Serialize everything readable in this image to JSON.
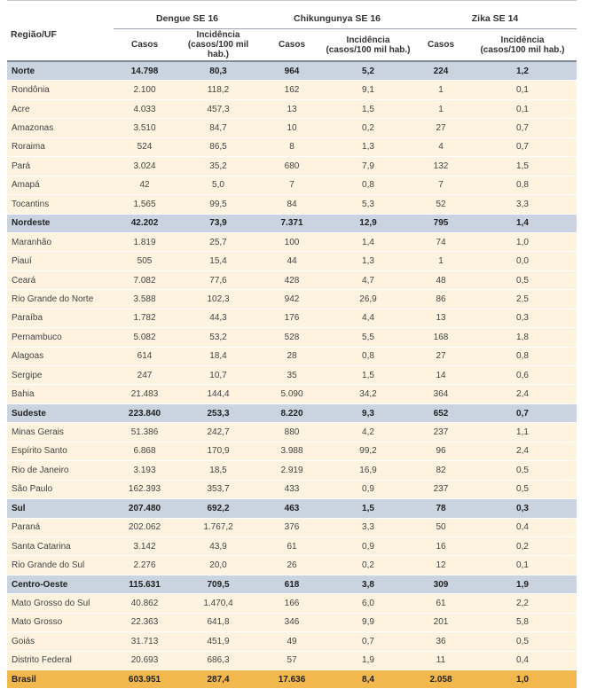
{
  "header": {
    "region_label": "Região/UF",
    "groups": [
      "Dengue SE 16",
      "Chikungunya SE 16",
      "Zika SE 14"
    ],
    "casos_label": "Casos",
    "incidencia_line1": "Incidência",
    "incidencia_line2": "(casos/100 mil hab.)"
  },
  "rows": [
    {
      "type": "region",
      "name": "Norte",
      "cells": [
        "14.798",
        "80,3",
        "964",
        "5,2",
        "224",
        "1,2"
      ]
    },
    {
      "type": "state",
      "name": "Rondônia",
      "cells": [
        "2.100",
        "118,2",
        "162",
        "9,1",
        "1",
        "0,1"
      ]
    },
    {
      "type": "state",
      "name": "Acre",
      "cells": [
        "4.033",
        "457,3",
        "13",
        "1,5",
        "1",
        "0,1"
      ]
    },
    {
      "type": "state",
      "name": "Amazonas",
      "cells": [
        "3.510",
        "84,7",
        "10",
        "0,2",
        "27",
        "0,7"
      ]
    },
    {
      "type": "state",
      "name": "Roraima",
      "cells": [
        "524",
        "86,5",
        "8",
        "1,3",
        "4",
        "0,7"
      ]
    },
    {
      "type": "state",
      "name": "Pará",
      "cells": [
        "3.024",
        "35,2",
        "680",
        "7,9",
        "132",
        "1,5"
      ]
    },
    {
      "type": "state",
      "name": "Amapá",
      "cells": [
        "42",
        "5,0",
        "7",
        "0,8",
        "7",
        "0,8"
      ]
    },
    {
      "type": "state",
      "name": "Tocantins",
      "cells": [
        "1.565",
        "99,5",
        "84",
        "5,3",
        "52",
        "3,3"
      ]
    },
    {
      "type": "region",
      "name": "Nordeste",
      "cells": [
        "42.202",
        "73,9",
        "7.371",
        "12,9",
        "795",
        "1,4"
      ]
    },
    {
      "type": "state",
      "name": "Maranhão",
      "cells": [
        "1.819",
        "25,7",
        "100",
        "1,4",
        "74",
        "1,0"
      ]
    },
    {
      "type": "state",
      "name": "Piauí",
      "cells": [
        "505",
        "15,4",
        "44",
        "1,3",
        "1",
        "0,0"
      ]
    },
    {
      "type": "state",
      "name": "Ceará",
      "cells": [
        "7.082",
        "77,6",
        "428",
        "4,7",
        "48",
        "0,5"
      ]
    },
    {
      "type": "state",
      "name": "Rio Grande do Norte",
      "cells": [
        "3.588",
        "102,3",
        "942",
        "26,9",
        "86",
        "2,5"
      ]
    },
    {
      "type": "state",
      "name": "Paraíba",
      "cells": [
        "1.782",
        "44,3",
        "176",
        "4,4",
        "13",
        "0,3"
      ]
    },
    {
      "type": "state",
      "name": "Pernambuco",
      "cells": [
        "5.082",
        "53,2",
        "528",
        "5,5",
        "168",
        "1,8"
      ]
    },
    {
      "type": "state",
      "name": "Alagoas",
      "cells": [
        "614",
        "18,4",
        "28",
        "0,8",
        "27",
        "0,8"
      ]
    },
    {
      "type": "state",
      "name": "Sergipe",
      "cells": [
        "247",
        "10,7",
        "35",
        "1,5",
        "14",
        "0,6"
      ]
    },
    {
      "type": "state",
      "name": "Bahia",
      "cells": [
        "21.483",
        "144,4",
        "5.090",
        "34,2",
        "364",
        "2,4"
      ]
    },
    {
      "type": "region",
      "name": "Sudeste",
      "cells": [
        "223.840",
        "253,3",
        "8.220",
        "9,3",
        "652",
        "0,7"
      ]
    },
    {
      "type": "state",
      "name": "Minas Gerais",
      "cells": [
        "51.386",
        "242,7",
        "880",
        "4,2",
        "237",
        "1,1"
      ]
    },
    {
      "type": "state",
      "name": "Espírito Santo",
      "cells": [
        "6.868",
        "170,9",
        "3.988",
        "99,2",
        "96",
        "2,4"
      ]
    },
    {
      "type": "state",
      "name": "Rio de Janeiro",
      "cells": [
        "3.193",
        "18,5",
        "2.919",
        "16,9",
        "82",
        "0,5"
      ]
    },
    {
      "type": "state",
      "name": "São Paulo",
      "cells": [
        "162.393",
        "353,7",
        "433",
        "0,9",
        "237",
        "0,5"
      ]
    },
    {
      "type": "region",
      "name": "Sul",
      "cells": [
        "207.480",
        "692,2",
        "463",
        "1,5",
        "78",
        "0,3"
      ]
    },
    {
      "type": "state",
      "name": "Paraná",
      "cells": [
        "202.062",
        "1.767,2",
        "376",
        "3,3",
        "50",
        "0,4"
      ]
    },
    {
      "type": "state",
      "name": "Santa Catarina",
      "cells": [
        "3.142",
        "43,9",
        "61",
        "0,9",
        "16",
        "0,2"
      ]
    },
    {
      "type": "state",
      "name": "Rio Grande do Sul",
      "cells": [
        "2.276",
        "20,0",
        "26",
        "0,2",
        "12",
        "0,1"
      ]
    },
    {
      "type": "region",
      "name": "Centro-Oeste",
      "cells": [
        "115.631",
        "709,5",
        "618",
        "3,8",
        "309",
        "1,9"
      ]
    },
    {
      "type": "state",
      "name": "Mato Grosso do Sul",
      "cells": [
        "40.862",
        "1.470,4",
        "166",
        "6,0",
        "61",
        "2,2"
      ]
    },
    {
      "type": "state",
      "name": "Mato Grosso",
      "cells": [
        "22.363",
        "641,8",
        "346",
        "9,9",
        "201",
        "5,8"
      ]
    },
    {
      "type": "state",
      "name": "Goiás",
      "cells": [
        "31.713",
        "451,9",
        "49",
        "0,7",
        "36",
        "0,5"
      ]
    },
    {
      "type": "state",
      "name": "Distrito Federal",
      "cells": [
        "20.693",
        "686,3",
        "57",
        "1,9",
        "11",
        "0,4"
      ]
    },
    {
      "type": "total",
      "name": "Brasil",
      "cells": [
        "603.951",
        "287,4",
        "17.636",
        "8,4",
        "2.058",
        "1,0"
      ]
    }
  ]
}
